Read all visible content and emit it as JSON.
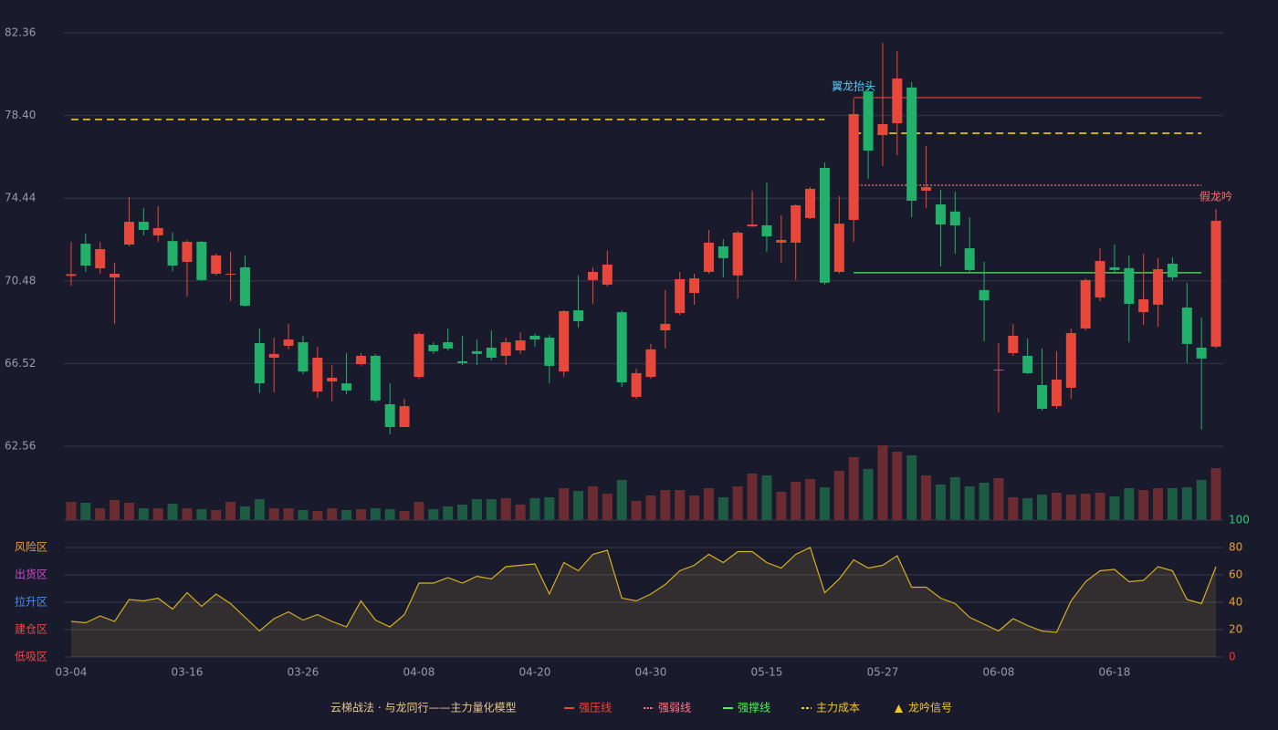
{
  "chart_data": [
    {
      "type": "candlestick",
      "ylim": [
        62.56,
        82.36
      ],
      "yticks": [
        82.36,
        {
          "value": 78.4,
          "label": "78.40"
        },
        74.44,
        70.48,
        66.52,
        62.56
      ],
      "up_color": "#e8483c",
      "down_color": "#22b06b",
      "open": [
        70.72,
        72.26,
        71.08,
        70.64,
        72.22,
        73.31,
        72.66,
        72.39,
        71.39,
        72.35,
        70.82,
        70.78,
        71.13,
        67.5,
        66.8,
        67.37,
        67.54,
        65.18,
        65.66,
        65.57,
        66.49,
        66.89,
        64.57,
        63.48,
        65.88,
        67.41,
        67.54,
        66.63,
        67.11,
        67.28,
        66.89,
        67.15,
        67.85,
        67.76,
        66.14,
        69.07,
        70.52,
        70.3,
        68.98,
        64.92,
        65.88,
        68.11,
        68.94,
        69.9,
        70.91,
        72.13,
        70.74,
        73.09,
        73.14,
        72.31,
        72.31,
        73.49,
        75.89,
        70.91,
        73.4,
        79.56,
        77.46,
        78.03,
        79.74,
        74.8,
        74.14,
        73.8,
        72.04,
        70.04,
        66.19,
        67.02,
        66.89,
        65.49,
        64.48,
        65.36,
        68.2,
        69.68,
        71.13,
        71.09,
        68.98,
        69.34,
        71.3,
        69.2,
        67.28,
        67.33
      ],
      "close": [
        70.8,
        71.21,
        72.0,
        70.82,
        73.31,
        72.92,
        73.01,
        71.21,
        72.35,
        70.52,
        71.7,
        70.82,
        69.29,
        65.57,
        66.98,
        67.67,
        66.14,
        66.8,
        65.84,
        65.23,
        66.89,
        64.75,
        63.48,
        64.48,
        67.94,
        67.11,
        67.24,
        66.54,
        66.98,
        66.8,
        67.54,
        67.63,
        67.67,
        66.41,
        69.03,
        68.55,
        70.91,
        71.26,
        65.62,
        66.06,
        67.2,
        68.42,
        70.56,
        70.6,
        72.31,
        71.57,
        72.79,
        73.18,
        72.61,
        72.44,
        74.1,
        74.89,
        70.39,
        73.22,
        78.47,
        76.72,
        77.99,
        80.17,
        74.32,
        74.97,
        73.18,
        73.14,
        71.0,
        69.55,
        66.23,
        67.85,
        66.06,
        64.35,
        65.75,
        67.98,
        70.52,
        71.43,
        71.0,
        69.38,
        69.6,
        71.04,
        70.65,
        67.46,
        66.76,
        73.36
      ],
      "high": [
        72.35,
        72.74,
        72.35,
        71.35,
        74.49,
        73.97,
        74.06,
        72.79,
        72.44,
        72.39,
        71.78,
        71.87,
        71.7,
        68.2,
        67.76,
        68.42,
        67.85,
        67.33,
        66.45,
        67.02,
        67.02,
        66.98,
        65.57,
        64.83,
        68.02,
        67.54,
        68.2,
        67.85,
        67.67,
        68.11,
        67.76,
        68.02,
        67.94,
        67.89,
        69.07,
        70.74,
        71.13,
        71.92,
        69.07,
        66.28,
        67.46,
        70.04,
        70.91,
        70.82,
        72.92,
        72.48,
        72.88,
        74.79,
        75.19,
        73.62,
        74.14,
        74.97,
        76.15,
        74.53,
        79.21,
        79.78,
        81.88,
        81.49,
        80.0,
        76.94,
        74.84,
        74.75,
        73.53,
        71.39,
        67.5,
        68.42,
        67.72,
        67.24,
        67.11,
        68.2,
        70.6,
        72.04,
        72.22,
        71.7,
        71.78,
        71.57,
        71.61,
        70.39,
        68.72,
        73.92
      ],
      "low": [
        70.25,
        70.91,
        70.82,
        68.42,
        72.13,
        72.66,
        72.35,
        70.95,
        69.73,
        70.47,
        70.73,
        69.51,
        69.25,
        65.1,
        65.14,
        67.2,
        66.01,
        64.88,
        64.7,
        65.05,
        66.41,
        64.66,
        63.13,
        63.48,
        65.79,
        66.98,
        67.15,
        66.45,
        66.45,
        66.67,
        66.45,
        66.98,
        67.33,
        65.57,
        65.88,
        68.24,
        69.38,
        70.21,
        65.4,
        64.83,
        65.79,
        67.24,
        68.85,
        69.34,
        70.82,
        70.65,
        69.64,
        73.05,
        71.87,
        71.35,
        70.52,
        73.44,
        70.3,
        70.82,
        72.35,
        75.37,
        75.98,
        76.5,
        73.53,
        73.97,
        71.17,
        71.78,
        70.91,
        67.59,
        64.18,
        66.89,
        66.01,
        64.27,
        64.35,
        64.83,
        68.11,
        69.51,
        70.82,
        67.54,
        68.37,
        68.28,
        70.52,
        66.54,
        63.35,
        67.24
      ],
      "legend_title": "云梯战法 · 与龙同行——主力量化模型",
      "lines": [
        {
          "name": "强压线",
          "color": "#e8483c",
          "dash": "solid",
          "values": [
            null,
            null,
            null,
            null,
            null,
            null,
            null,
            null,
            null,
            null,
            null,
            null,
            null,
            null,
            null,
            null,
            null,
            null,
            null,
            null,
            null,
            null,
            null,
            null,
            null,
            null,
            null,
            null,
            null,
            null,
            null,
            null,
            null,
            null,
            null,
            null,
            null,
            null,
            null,
            null,
            null,
            null,
            null,
            null,
            null,
            null,
            null,
            null,
            null,
            null,
            null,
            null,
            null,
            null,
            79.26,
            79.26,
            79.26,
            79.26,
            79.26,
            79.26,
            79.26,
            79.26,
            79.26,
            79.26,
            79.26,
            79.26,
            79.26,
            79.26,
            79.26,
            79.26,
            79.26,
            79.26,
            79.26,
            79.26,
            79.26,
            79.26,
            79.26,
            79.26,
            79.26,
            null
          ]
        },
        {
          "name": "强弱线",
          "color": "#ff7a8a",
          "dash": "dotted",
          "values": [
            null,
            null,
            null,
            null,
            null,
            null,
            null,
            null,
            null,
            null,
            null,
            null,
            null,
            null,
            null,
            null,
            null,
            null,
            null,
            null,
            null,
            null,
            null,
            null,
            null,
            null,
            null,
            null,
            null,
            null,
            null,
            null,
            null,
            null,
            null,
            null,
            null,
            null,
            null,
            null,
            null,
            null,
            null,
            null,
            null,
            null,
            null,
            null,
            null,
            null,
            null,
            null,
            null,
            null,
            75.06,
            75.06,
            75.06,
            75.06,
            75.06,
            75.06,
            75.06,
            75.06,
            75.06,
            75.06,
            75.06,
            75.06,
            75.06,
            75.06,
            75.06,
            75.06,
            75.06,
            75.06,
            75.06,
            75.06,
            75.06,
            75.06,
            75.06,
            75.06,
            75.06,
            null
          ]
        },
        {
          "name": "强撑线",
          "color": "#4ef05a",
          "dash": "solid",
          "values": [
            null,
            null,
            null,
            null,
            null,
            null,
            null,
            null,
            null,
            null,
            null,
            null,
            null,
            null,
            null,
            null,
            null,
            null,
            null,
            null,
            null,
            null,
            null,
            null,
            null,
            null,
            null,
            null,
            null,
            null,
            null,
            null,
            null,
            null,
            null,
            null,
            null,
            null,
            null,
            null,
            null,
            null,
            null,
            null,
            null,
            null,
            null,
            null,
            null,
            null,
            null,
            null,
            null,
            null,
            70.87,
            70.87,
            70.87,
            70.87,
            70.87,
            70.87,
            70.87,
            70.87,
            70.87,
            70.87,
            70.87,
            70.87,
            70.87,
            70.87,
            70.87,
            70.87,
            70.87,
            70.87,
            70.87,
            70.87,
            70.87,
            70.87,
            70.87,
            70.87,
            70.87,
            null
          ]
        },
        {
          "name": "主力成本",
          "color": "#f0c828",
          "dash": "dashed",
          "values": [
            78.21,
            78.21,
            78.21,
            78.21,
            78.21,
            78.21,
            78.21,
            78.21,
            78.21,
            78.21,
            78.21,
            78.21,
            78.21,
            78.21,
            78.21,
            78.21,
            78.21,
            78.21,
            78.21,
            78.21,
            78.21,
            78.21,
            78.21,
            78.21,
            78.21,
            78.21,
            78.21,
            78.21,
            78.21,
            78.21,
            78.21,
            78.21,
            78.21,
            78.21,
            78.21,
            78.21,
            78.21,
            78.21,
            78.21,
            78.21,
            78.21,
            78.21,
            78.21,
            78.21,
            78.21,
            78.21,
            78.21,
            78.21,
            78.21,
            78.21,
            78.21,
            78.21,
            78.21,
            null,
            77.55,
            77.55,
            77.55,
            77.55,
            77.55,
            77.55,
            77.55,
            77.55,
            77.55,
            77.55,
            77.55,
            77.55,
            77.55,
            77.55,
            77.55,
            77.55,
            77.55,
            77.55,
            77.55,
            77.55,
            77.55,
            77.55,
            77.55,
            77.55,
            77.55,
            null
          ]
        }
      ],
      "signal": {
        "name": "龙吟信号",
        "color": "#f0c828"
      },
      "annotations": [
        {
          "text": "翼龙抬头",
          "index": 54,
          "color": "#5bc8f5"
        },
        {
          "text": "假龙吟",
          "index": 79,
          "color": "#ff6b6b"
        }
      ]
    },
    {
      "type": "volume",
      "ylim": [
        0,
        82
      ],
      "up_color": "#6b2c31",
      "down_color": "#1d5b43",
      "values": [
        20,
        19,
        13,
        22,
        19,
        13,
        13,
        18,
        13,
        12,
        11,
        20,
        15,
        23,
        13,
        13,
        11,
        10,
        13,
        11,
        12,
        13,
        12,
        10,
        20,
        12,
        15,
        17,
        23,
        23,
        24,
        17,
        24,
        25,
        35,
        32,
        37,
        29,
        44,
        21,
        27,
        33,
        33,
        27,
        35,
        25,
        37,
        51,
        49,
        31,
        42,
        45,
        36,
        54,
        69,
        56,
        82,
        75,
        71,
        49,
        39,
        47,
        37,
        41,
        46,
        25,
        24,
        28,
        30,
        28,
        29,
        30,
        26,
        35,
        33,
        35,
        35,
        36,
        44,
        57
      ]
    },
    {
      "type": "indicator",
      "ylim": [
        0,
        100
      ],
      "yticks": [
        0,
        20,
        40,
        60,
        80,
        100
      ],
      "ytick_colors": [
        "#ff3030",
        "#e8a030",
        "#e8a030",
        "#e8a030",
        "#e8a030",
        "#2ecc71"
      ],
      "color": "#d4b020",
      "zones": [
        {
          "label": "风险区",
          "value": 80,
          "color": "#e8a030"
        },
        {
          "label": "出货区",
          "value": 60,
          "color": "#d04ad0"
        },
        {
          "label": "拉升区",
          "value": 40,
          "color": "#4a8ff0"
        },
        {
          "label": "建仓区",
          "value": 20,
          "color": "#e84a4a"
        },
        {
          "label": "低吸区",
          "value": 0,
          "color": "#e84a4a"
        }
      ],
      "categories": [
        "03-04",
        null,
        null,
        null,
        null,
        null,
        null,
        null,
        "03-16",
        null,
        null,
        null,
        null,
        null,
        null,
        null,
        "03-26",
        null,
        null,
        null,
        null,
        null,
        null,
        null,
        "04-08",
        null,
        null,
        null,
        null,
        null,
        null,
        null,
        "04-20",
        null,
        null,
        null,
        null,
        null,
        null,
        null,
        "04-30",
        null,
        null,
        null,
        null,
        null,
        null,
        null,
        "05-15",
        null,
        null,
        null,
        null,
        null,
        null,
        null,
        "05-27",
        null,
        null,
        null,
        null,
        null,
        null,
        null,
        "06-08",
        null,
        null,
        null,
        null,
        null,
        null,
        null,
        "06-18",
        null,
        null,
        null,
        null,
        null,
        null,
        null
      ],
      "values": [
        26,
        25,
        30,
        26,
        42,
        41,
        43,
        35,
        47,
        37,
        46,
        39,
        29,
        19,
        28,
        33,
        27,
        31,
        26,
        22,
        41,
        27,
        22,
        31,
        54,
        54,
        58,
        54,
        59,
        57,
        66,
        67,
        68,
        46,
        69,
        63,
        75,
        78,
        43,
        41,
        46,
        53,
        63,
        67,
        75,
        69,
        77,
        77,
        69,
        65,
        75,
        80,
        47,
        57,
        71,
        65,
        67,
        74,
        51,
        51,
        43,
        39,
        29,
        24,
        19,
        28,
        23,
        19,
        18,
        41,
        55,
        63,
        64,
        55,
        56,
        66,
        63,
        42,
        39,
        66
      ]
    }
  ]
}
